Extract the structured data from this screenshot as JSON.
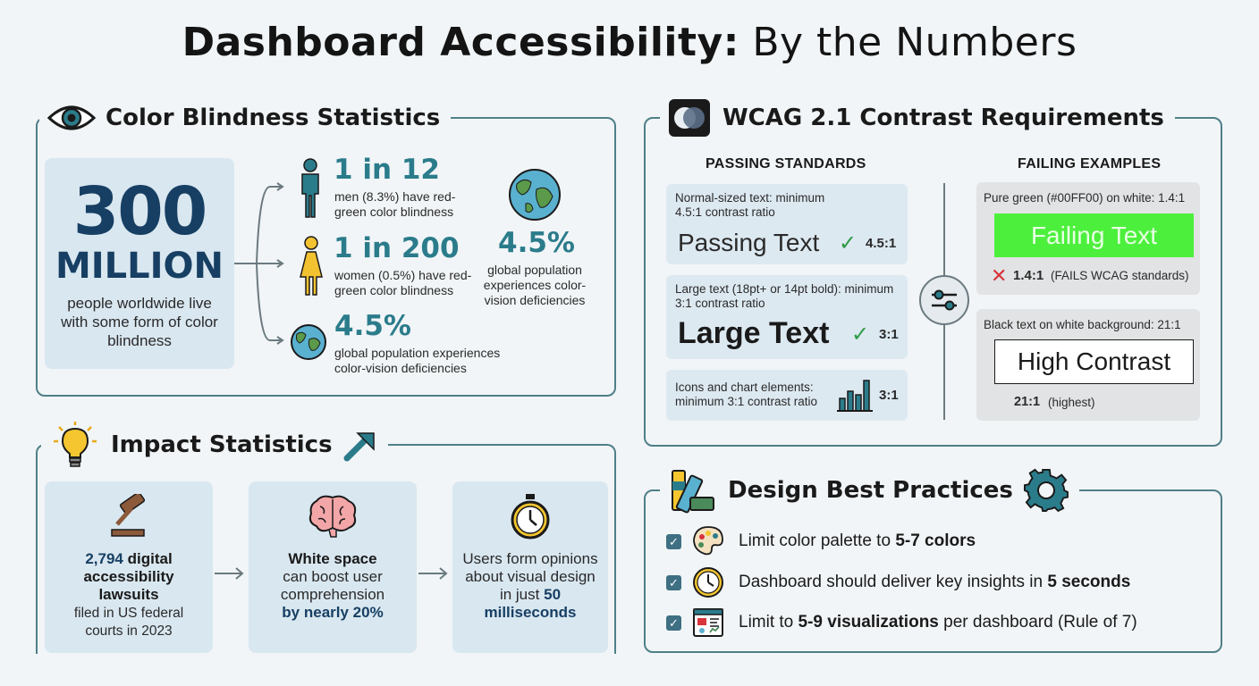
{
  "page": {
    "title_bold": "Dashboard Accessibility:",
    "title_light": "By the Numbers"
  },
  "color_blindness": {
    "heading": "Color Blindness Statistics",
    "big_number": "300",
    "big_unit": "MILLION",
    "big_desc": "people worldwide live with some form of color blindness",
    "men_stat": "1 in 12",
    "men_desc": "men (8.3%) have red-green color blindness",
    "women_stat": "1 in 200",
    "women_desc": "women (0.5%) have red-green color blindness",
    "global_stat": "4.5%",
    "global_desc": "global population experiences color-vision deficiencies",
    "side_stat": "4.5%",
    "side_desc": "global population experiences color-vision deficiencies"
  },
  "wcag": {
    "heading": "WCAG 2.1 Contrast Requirements",
    "passing_header": "PASSING STANDARDS",
    "failing_header": "FAILING EXAMPLES",
    "pass1_desc": "Normal-sized text: minimum 4.5:1 contrast ratio",
    "pass1_sample": "Passing Text",
    "pass1_ratio": "4.5:1",
    "pass2_desc": "Large text (18pt+ or 14pt bold): minimum 3:1 contrast ratio",
    "pass2_sample": "Large Text",
    "pass2_ratio": "3:1",
    "pass3_desc": "Icons and chart elements: minimum 3:1 contrast ratio",
    "pass3_ratio": "3:1",
    "fail1_desc": "Pure green (#00FF00) on white: 1.4:1",
    "fail1_sample": "Failing Text",
    "fail1_ratio": "1.4:1",
    "fail1_note": "(FAILS WCAG standards)",
    "fail2_desc": "Black text on white background: 21:1",
    "fail2_sample": "High Contrast",
    "fail2_ratio": "21:1",
    "fail2_note": "(highest)"
  },
  "impact": {
    "heading": "Impact Statistics",
    "card1_bold": "2,794",
    "card1_bold2": "digital accessibility lawsuits",
    "card1_rest": "filed in US federal courts in 2023",
    "card2_bold": "White space",
    "card2_mid": "can boost user comprehension",
    "card2_em": "by nearly 20%",
    "card3_text": "Users form opinions about visual design in just",
    "card3_em": "50 milliseconds"
  },
  "best_practices": {
    "heading": "Design Best Practices",
    "item1_pre": "Limit color palette to ",
    "item1_bold": "5-7 colors",
    "item2_pre": "Dashboard should deliver key insights in ",
    "item2_bold": "5 seconds",
    "item3_pre": "Limit to ",
    "item3_bold": "5-9 visualizations",
    "item3_post": " per dashboard (Rule of 7)"
  },
  "colors": {
    "accent_teal": "#2b7c8b",
    "navy": "#173f63",
    "pass_green": "#2f9a47",
    "fail_green": "#4cf03c",
    "fail_red": "#d8343a"
  }
}
